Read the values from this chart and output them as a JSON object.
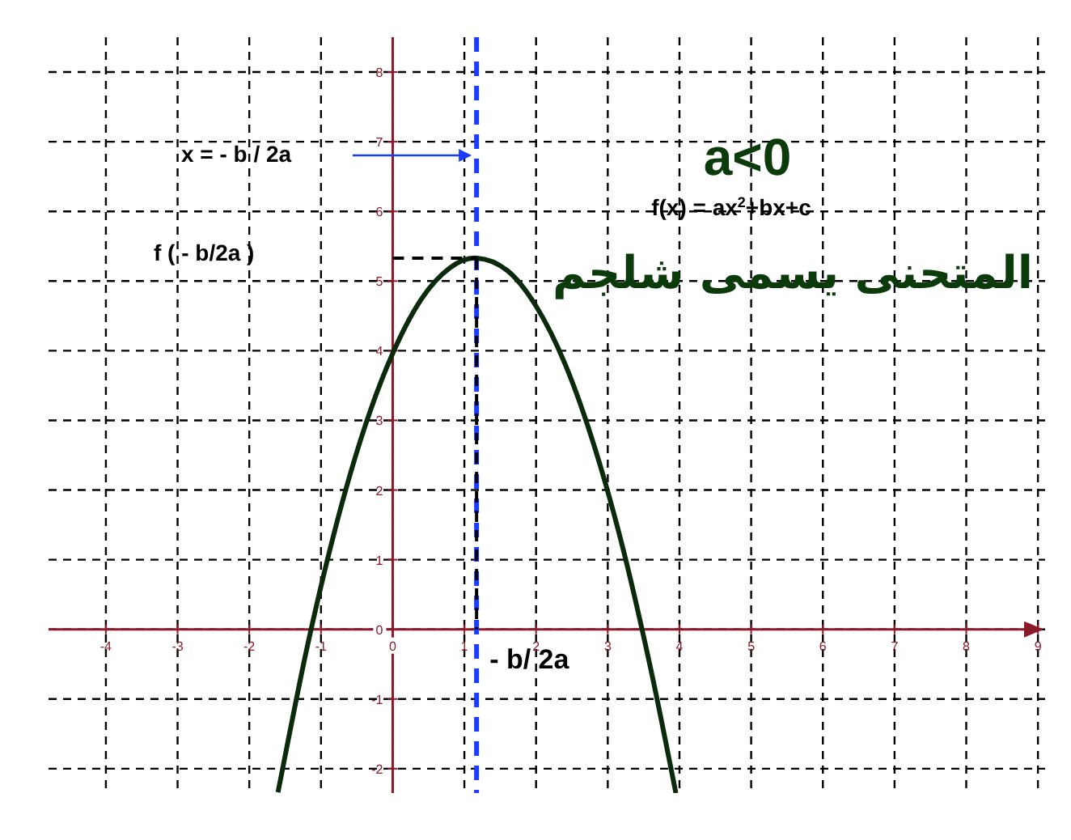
{
  "chart_data": {
    "type": "line",
    "series": [
      {
        "color": "#0b2a0b",
        "x": [
          -1.6,
          -1.2,
          -0.8,
          -0.4,
          0,
          0.4,
          0.8,
          1.17,
          1.6,
          2.0,
          2.4,
          2.8,
          3.2,
          3.6,
          3.95
        ],
        "values": [
          -2.34,
          -0.29,
          1.45,
          2.87,
          3.96,
          4.74,
          5.19,
          5.33,
          5.15,
          4.64,
          3.82,
          2.67,
          1.21,
          -0.57,
          -2.35
        ]
      },
      {
        "color": "#000000",
        "line_style": "dashed",
        "x": [
          0,
          1.17
        ],
        "values": [
          5.33,
          5.33
        ]
      },
      {
        "color": "#000000",
        "line_style": "dashed",
        "x": [
          1.17,
          1.17
        ],
        "values": [
          5.33,
          0
        ]
      }
    ],
    "xlim": [
      -4.8,
      9.1
    ],
    "ylim": [
      -2.35,
      8.5
    ],
    "xticks": [
      -4,
      -3,
      -2,
      -1,
      0,
      1,
      2,
      3,
      4,
      5,
      6,
      7,
      8,
      9
    ],
    "yticks": [
      -2,
      -1,
      0,
      1,
      2,
      3,
      4,
      5,
      6,
      7,
      8
    ],
    "grid": true,
    "line_style": "solid",
    "ref_lines": [
      {
        "axis": "x",
        "value": 1.17,
        "color": "#1a3cff",
        "line_style": "dashed"
      }
    ],
    "annotations": [
      "x = - b / 2a",
      "f ( - b/2a )",
      {
        "text": "- b/ 2a",
        "x": 1.17,
        "y": 0
      },
      "a<0",
      "f(x) = ax$^{2}$+bx+c",
      "المتحنى يسمى شلجم"
    ]
  }
}
